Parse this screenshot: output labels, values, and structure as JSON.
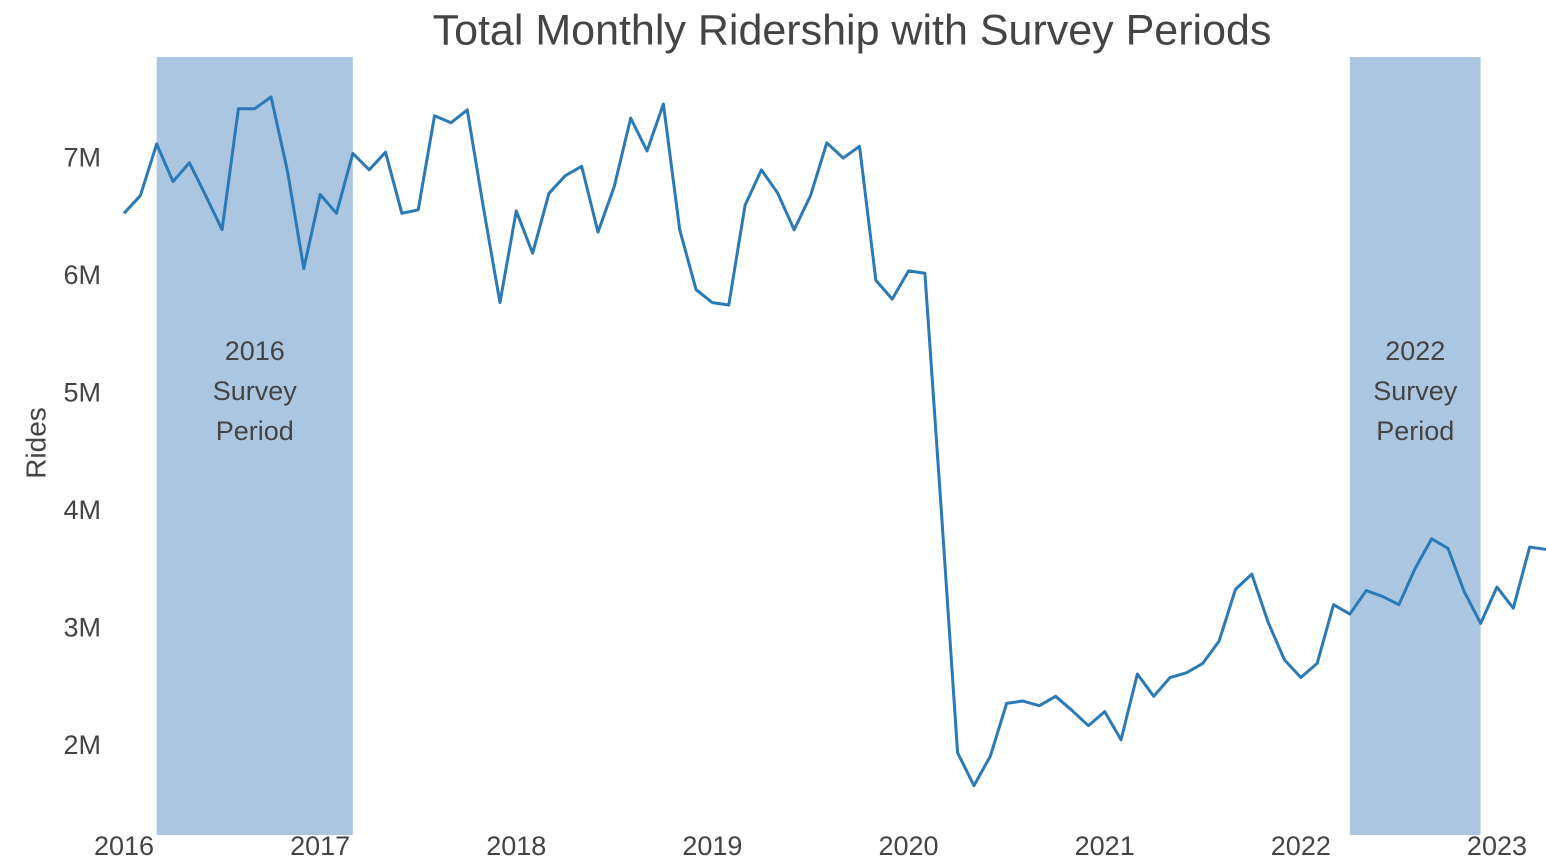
{
  "chart_data": {
    "type": "line",
    "title": "Total Monthly Ridership with Survey Periods",
    "y_label": "Rides",
    "x": [
      "2016-01",
      "2016-02",
      "2016-03",
      "2016-04",
      "2016-05",
      "2016-06",
      "2016-07",
      "2016-08",
      "2016-09",
      "2016-10",
      "2016-11",
      "2016-12",
      "2017-01",
      "2017-02",
      "2017-03",
      "2017-04",
      "2017-05",
      "2017-06",
      "2017-07",
      "2017-08",
      "2017-09",
      "2017-10",
      "2017-11",
      "2017-12",
      "2018-01",
      "2018-02",
      "2018-03",
      "2018-04",
      "2018-05",
      "2018-06",
      "2018-07",
      "2018-08",
      "2018-09",
      "2018-10",
      "2018-11",
      "2018-12",
      "2019-01",
      "2019-02",
      "2019-03",
      "2019-04",
      "2019-05",
      "2019-06",
      "2019-07",
      "2019-08",
      "2019-09",
      "2019-10",
      "2019-11",
      "2019-12",
      "2020-01",
      "2020-02",
      "2020-03",
      "2020-04",
      "2020-05",
      "2020-06",
      "2020-07",
      "2020-08",
      "2020-09",
      "2020-10",
      "2020-11",
      "2020-12",
      "2021-01",
      "2021-02",
      "2021-03",
      "2021-04",
      "2021-05",
      "2021-06",
      "2021-07",
      "2021-08",
      "2021-09",
      "2021-10",
      "2021-11",
      "2021-12",
      "2022-01",
      "2022-02",
      "2022-03",
      "2022-04",
      "2022-05",
      "2022-06",
      "2022-07",
      "2022-08",
      "2022-09",
      "2022-10",
      "2022-11",
      "2022-12",
      "2023-01",
      "2023-02",
      "2023-03",
      "2023-04"
    ],
    "series": [
      {
        "name": "Rides",
        "color": "#2a7ab8",
        "values": [
          6540000,
          6690000,
          7130000,
          6810000,
          6970000,
          6690000,
          6400000,
          7430000,
          7430000,
          7530000,
          6900000,
          6070000,
          6700000,
          6540000,
          7050000,
          6910000,
          7060000,
          6540000,
          6570000,
          7370000,
          7310000,
          7420000,
          6580000,
          5780000,
          6560000,
          6200000,
          6710000,
          6860000,
          6940000,
          6380000,
          6770000,
          7350000,
          7070000,
          7470000,
          6400000,
          5890000,
          5780000,
          5760000,
          6610000,
          6910000,
          6710000,
          6400000,
          6690000,
          7140000,
          7010000,
          7110000,
          5970000,
          5810000,
          6050000,
          6030000,
          4020000,
          1950000,
          1670000,
          1920000,
          2370000,
          2390000,
          2350000,
          2430000,
          2310000,
          2180000,
          2300000,
          2060000,
          2620000,
          2430000,
          2590000,
          2630000,
          2710000,
          2900000,
          3340000,
          3470000,
          3060000,
          2740000,
          2590000,
          2710000,
          3210000,
          3130000,
          3330000,
          3280000,
          3210000,
          3520000,
          3770000,
          3690000,
          3320000,
          3050000,
          3360000,
          3180000,
          3700000,
          3680000
        ]
      }
    ],
    "xlim": [
      "2016-01",
      "2023-04"
    ],
    "ylim": [
      1250000,
      7870000
    ],
    "xticks": [
      {
        "value": "2016-01",
        "label": "2016"
      },
      {
        "value": "2017-01",
        "label": "2017"
      },
      {
        "value": "2018-01",
        "label": "2018"
      },
      {
        "value": "2019-01",
        "label": "2019"
      },
      {
        "value": "2020-01",
        "label": "2020"
      },
      {
        "value": "2021-01",
        "label": "2021"
      },
      {
        "value": "2022-01",
        "label": "2022"
      },
      {
        "value": "2023-01",
        "label": "2023"
      }
    ],
    "yticks": [
      {
        "value": 2000000,
        "label": "2M"
      },
      {
        "value": 3000000,
        "label": "3M"
      },
      {
        "value": 4000000,
        "label": "4M"
      },
      {
        "value": 5000000,
        "label": "5M"
      },
      {
        "value": 6000000,
        "label": "6M"
      },
      {
        "value": 7000000,
        "label": "7M"
      }
    ],
    "grid": false,
    "regions": [
      {
        "start": "2016-03",
        "end": "2017-03",
        "color": "#abc6e1",
        "label_lines": [
          "2016",
          "Survey",
          "Period"
        ]
      },
      {
        "start": "2022-04",
        "end": "2022-12",
        "color": "#abc6e1",
        "label_lines": [
          "2022",
          "Survey",
          "Period"
        ]
      }
    ]
  }
}
